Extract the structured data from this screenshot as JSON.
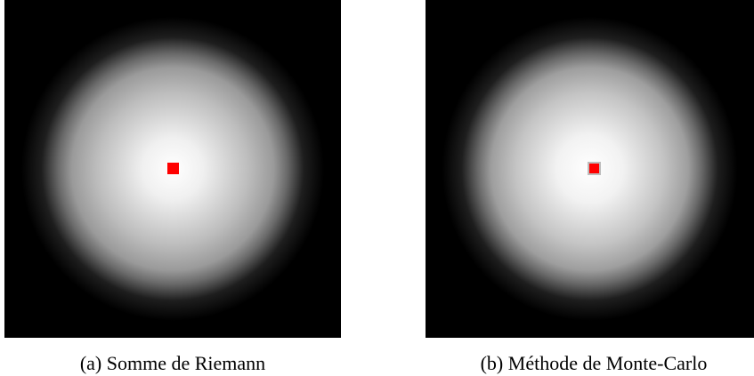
{
  "figures": [
    {
      "caption": "(a) Somme de Riemann"
    },
    {
      "caption": "(b) Méthode de Monte-Carlo"
    }
  ]
}
